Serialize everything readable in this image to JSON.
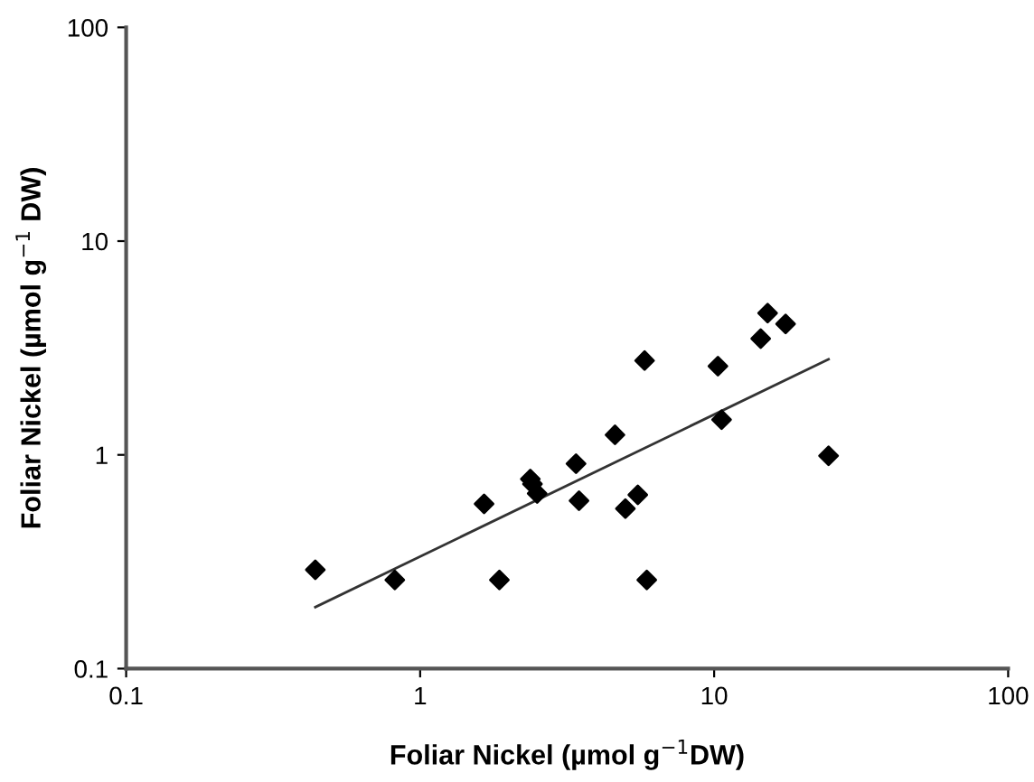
{
  "chart_data": {
    "type": "scatter",
    "xlabel": "Foliar Nickel (µmol g$^{−1}$DW)",
    "ylabel": "Foliar Nickel (µmol g$^{−1}$ DW)",
    "log": "xy",
    "xlim": [
      0.1,
      100
    ],
    "ylim": [
      0.1,
      100
    ],
    "xticks": [
      0.1,
      1,
      10,
      100
    ],
    "yticks": [
      0.1,
      1,
      10,
      100
    ],
    "grid": false,
    "marker": "diamond",
    "series": [
      {
        "color": "#000000",
        "x": [
          0.44,
          0.82,
          1.65,
          1.86,
          2.37,
          2.41,
          2.5,
          3.39,
          3.47,
          4.6,
          4.99,
          5.5,
          5.8,
          5.9,
          10.3,
          10.6,
          14.4,
          15.2,
          17.5,
          24.5
        ],
        "values": [
          0.29,
          0.26,
          0.59,
          0.26,
          0.77,
          0.73,
          0.66,
          0.91,
          0.61,
          1.24,
          0.56,
          0.65,
          2.76,
          0.26,
          2.6,
          1.46,
          3.5,
          4.6,
          4.1,
          0.99
        ]
      },
      {
        "type": "line",
        "color": "#333333",
        "x": [
          0.44,
          24.5
        ],
        "values": [
          0.194,
          2.8
        ],
        "marker": "none",
        "line_style": "solid"
      }
    ]
  }
}
